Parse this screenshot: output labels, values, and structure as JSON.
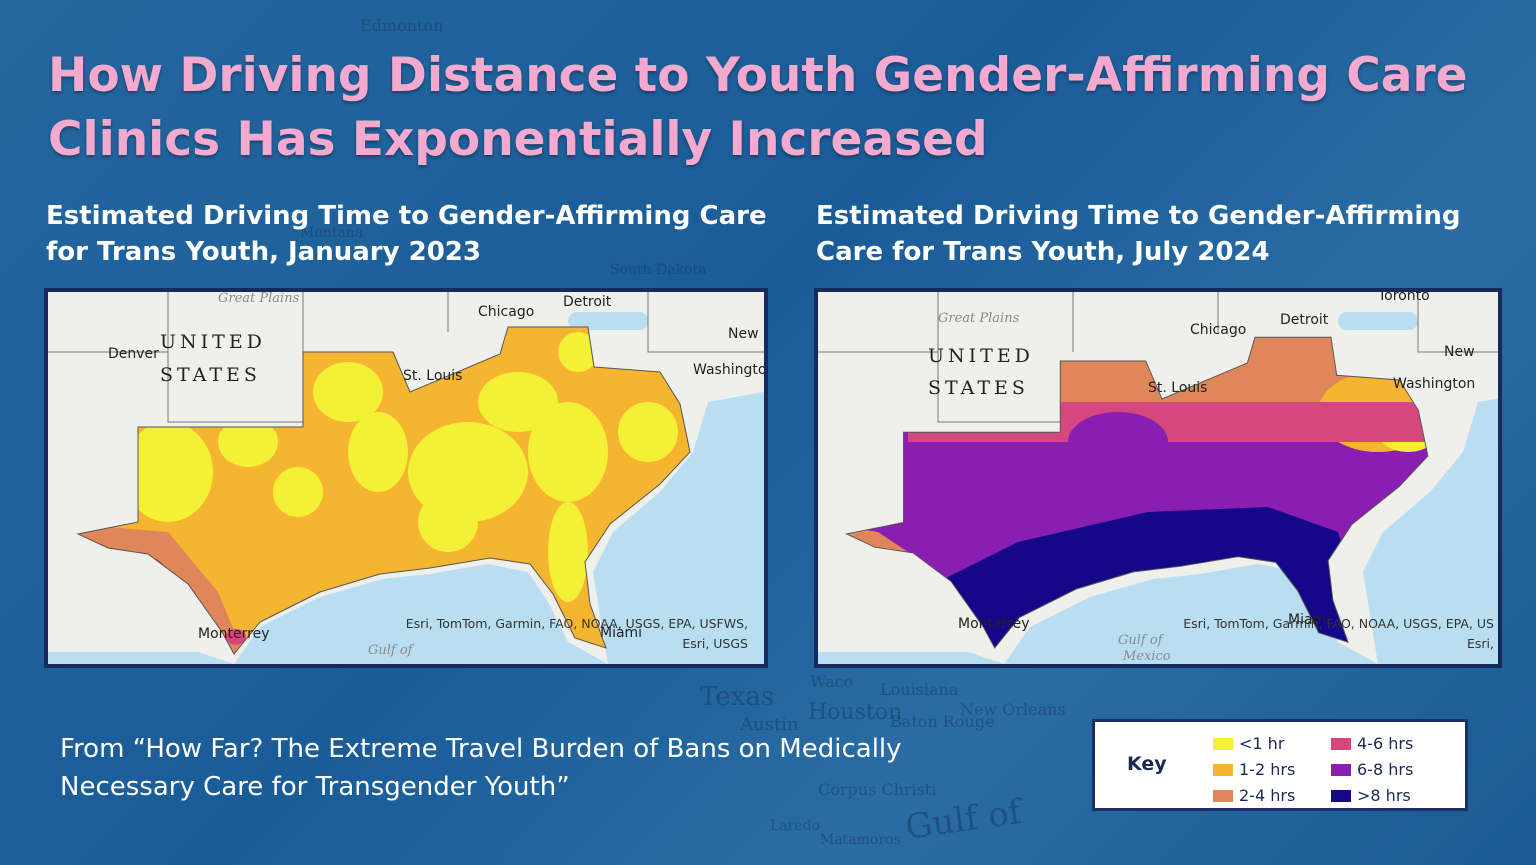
{
  "title": "How Driving Distance to Youth Gender-Affirming Care Clinics Has Exponentially Increased",
  "background_labels": [
    "Edmonton",
    "Montana",
    "South Dakota",
    "Texas",
    "Waco",
    "Austin",
    "Houston",
    "Louisiana",
    "Baton Rouge",
    "New Orleans",
    "Corpus Christi",
    "Laredo",
    "Matamoros",
    "Gulf of"
  ],
  "maps": [
    {
      "title": "Estimated Driving Time to Gender-Affirming Care for Trans Youth, January 2023",
      "labels": [
        "Great Plains",
        "Chicago",
        "Detroit",
        "Denver",
        "UNITED",
        "STATES",
        "St. Louis",
        "Washington",
        "New",
        "Monterrey",
        "Miami",
        "Gulf of"
      ],
      "attribution": [
        "Esri, TomTom, Garmin, FAO, NOAA, USGS, EPA, USFWS,",
        "Esri, USGS"
      ]
    },
    {
      "title": "Estimated Driving Time to Gender-Affirming Care for Trans Youth, July 2024",
      "labels": [
        "Great Plains",
        "Chicago",
        "Detroit",
        "Toronto",
        "UNITED",
        "STATES",
        "St. Louis",
        "Washington",
        "New",
        "Monterrey",
        "Miami",
        "Gulf of",
        "Mexico"
      ],
      "attribution": [
        "Esri, TomTom, Garmin, FAO, NOAA, USGS, EPA, US",
        "Esri,"
      ]
    }
  ],
  "source": "From “How Far? The Extreme Travel Burden of Bans on Medically Necessary Care for Transgender Youth”",
  "key": {
    "title": "Key",
    "items": [
      {
        "label": "<1 hr",
        "color": "#f3f035"
      },
      {
        "label": "1-2 hrs",
        "color": "#f5b530"
      },
      {
        "label": "2-4 hrs",
        "color": "#e0875a"
      },
      {
        "label": "4-6 hrs",
        "color": "#d6477d"
      },
      {
        "label": "6-8 hrs",
        "color": "#8a1eb2"
      },
      {
        "label": ">8 hrs",
        "color": "#14078a"
      }
    ]
  }
}
